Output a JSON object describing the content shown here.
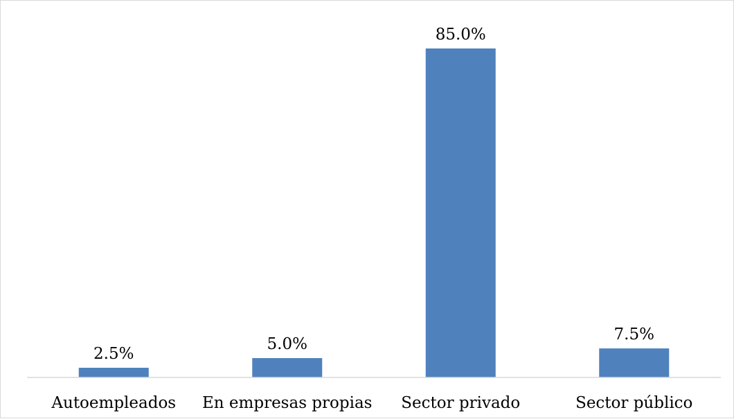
{
  "chart_data": {
    "type": "bar",
    "title": "",
    "xlabel": "",
    "ylabel": "",
    "categories": [
      "Autoempleados",
      "En empresas propias",
      "Sector privado",
      "Sector público"
    ],
    "values": [
      2.5,
      5.0,
      85.0,
      7.5
    ],
    "value_labels": [
      "2.5%",
      "5.0%",
      "85.0%",
      "7.5%"
    ],
    "unit": "%",
    "ylim": [
      0,
      85
    ],
    "grid": false,
    "legend": "none",
    "bar_color": "#4f81bd",
    "axis_color": "#d9d9d9"
  }
}
